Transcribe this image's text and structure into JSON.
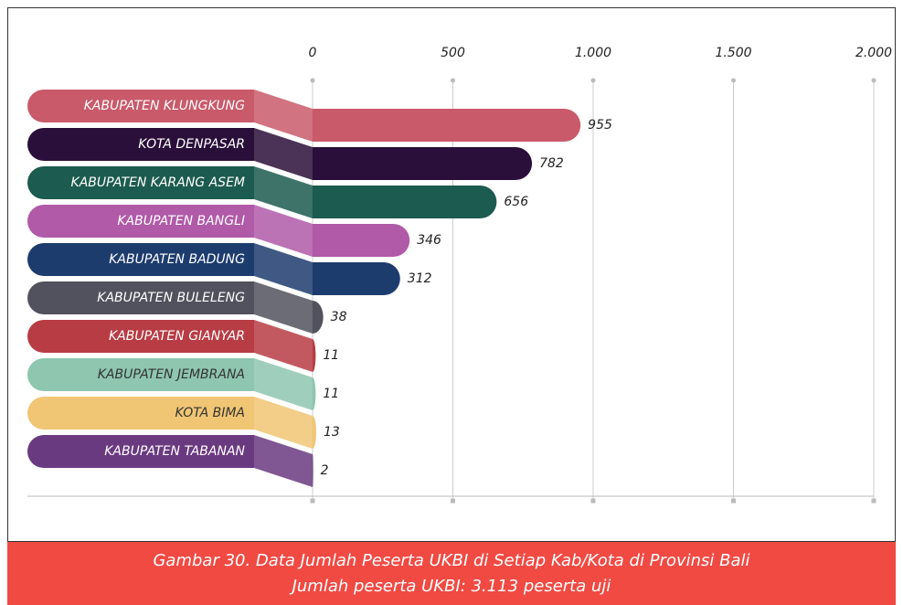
{
  "chart_data": {
    "type": "bar",
    "title": "Gambar 30. Data Jumlah Peserta UKBI di Setiap Kab/Kota di Provinsi Bali",
    "subtitle": "Jumlah peserta UKBI: 3.113 peserta uji",
    "categories": [
      "KABUPATEN KLUNGKUNG",
      "KOTA DENPASAR",
      "KABUPATEN KARANG ASEM",
      "KABUPATEN BANGLI",
      "KABUPATEN BADUNG",
      "KABUPATEN BULELENG",
      "KABUPATEN GIANYAR",
      "KABUPATEN JEMBRANA",
      "KOTA BIMA",
      "KABUPATEN TABANAN"
    ],
    "values": [
      955,
      782,
      656,
      346,
      312,
      38,
      11,
      11,
      13,
      2
    ],
    "colors": [
      "#c95a6a",
      "#2a0f3a",
      "#1c5b4f",
      "#b05aa8",
      "#1d3c6e",
      "#52525e",
      "#b83c44",
      "#8ec6b0",
      "#f0c674",
      "#6a3a80"
    ],
    "xlim": [
      0,
      2000
    ],
    "xticks": [
      0,
      500,
      {
        "value": 1000,
        "label": "1.000"
      },
      {
        "value": 1500,
        "label": "1.500"
      },
      {
        "value": 2000,
        "label": "2.000"
      }
    ],
    "grid": true
  }
}
